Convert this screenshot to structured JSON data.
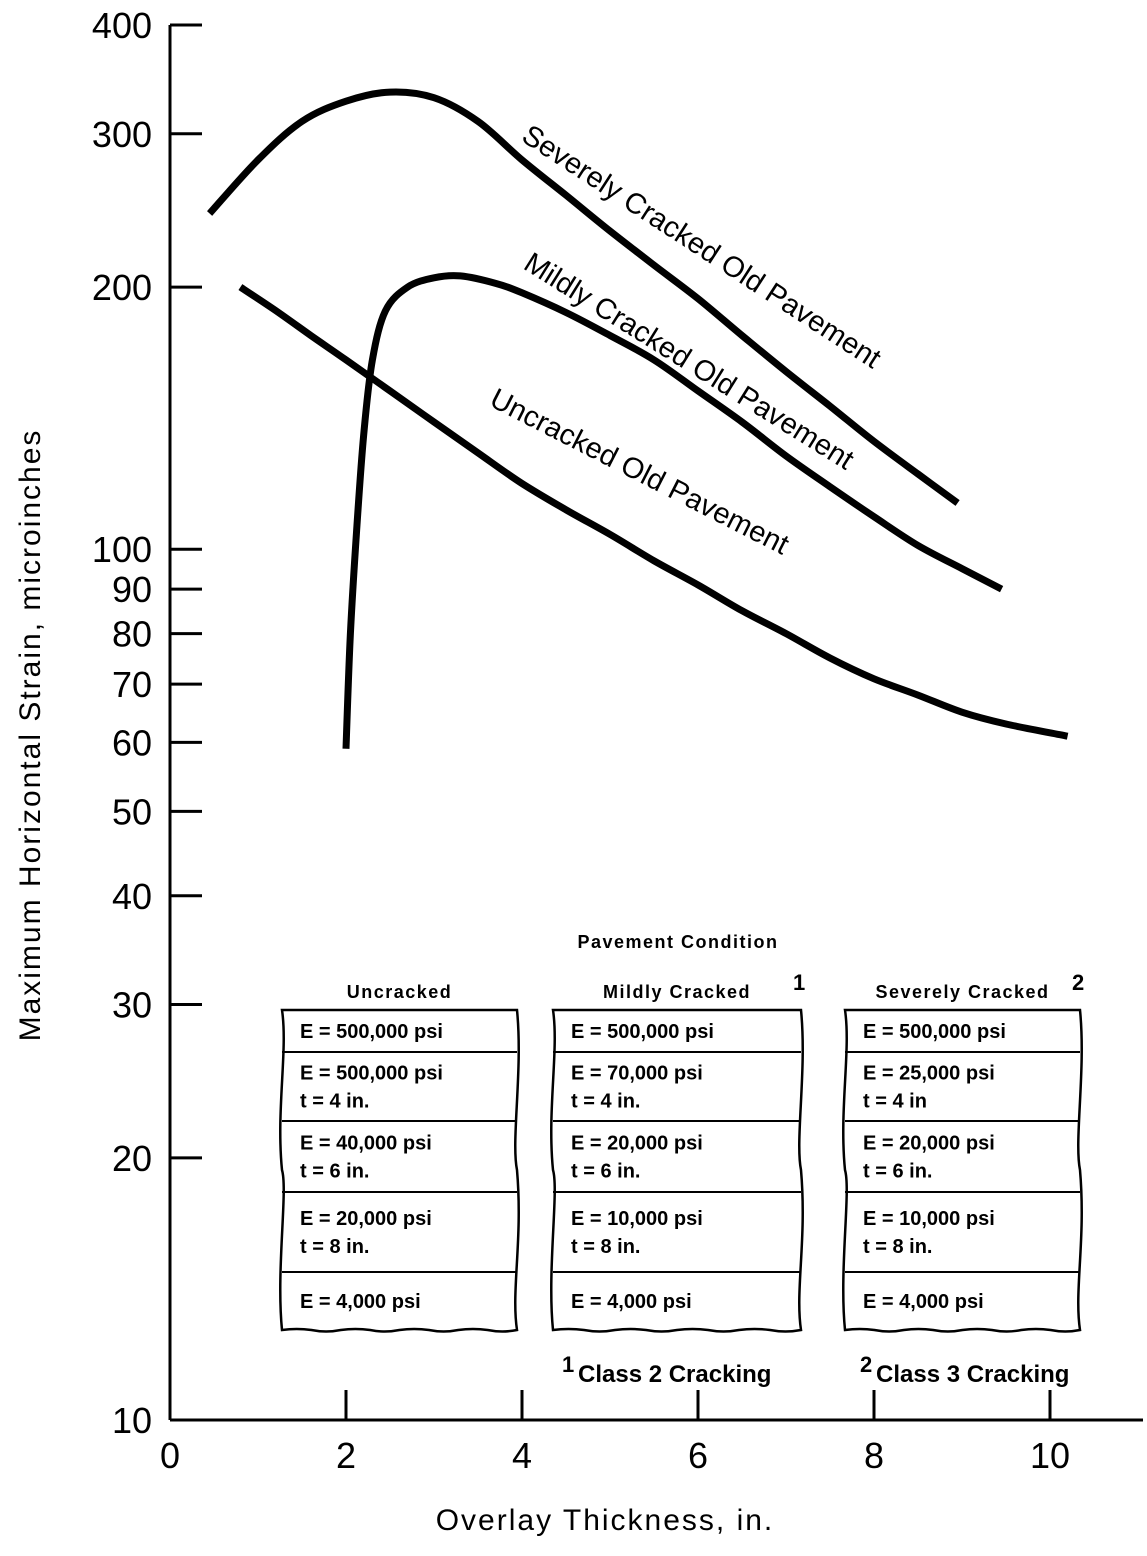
{
  "chart_data": {
    "type": "line",
    "xlabel": "Overlay Thickness, in.",
    "ylabel": "Maximum Horizontal Strain, microinches",
    "xlim": [
      0,
      11
    ],
    "ylim": [
      10,
      400
    ],
    "yscale": "log",
    "grid": false,
    "x_ticks": [
      0,
      2,
      4,
      6,
      8,
      10
    ],
    "x_tick_labels": [
      "0",
      "2",
      "4",
      "6",
      "8",
      "10"
    ],
    "y_ticks": [
      10,
      20,
      30,
      40,
      50,
      60,
      70,
      80,
      90,
      100,
      200,
      300,
      400
    ],
    "y_tick_labels": [
      "10",
      "20",
      "30",
      "40",
      "50",
      "60",
      "70",
      "80",
      "90",
      "100",
      "200",
      "300",
      "400"
    ],
    "series": [
      {
        "name": "Severely Cracked Old Pavement",
        "points": [
          [
            0.45,
            243
          ],
          [
            1.0,
            280
          ],
          [
            1.5,
            310
          ],
          [
            2.0,
            327
          ],
          [
            2.5,
            335
          ],
          [
            3.0,
            330
          ],
          [
            3.5,
            310
          ],
          [
            4.0,
            280
          ],
          [
            4.5,
            255
          ],
          [
            5.0,
            232
          ],
          [
            5.5,
            212
          ],
          [
            6.0,
            194
          ],
          [
            6.5,
            176
          ],
          [
            7.0,
            160
          ],
          [
            7.5,
            146
          ],
          [
            8.0,
            133
          ],
          [
            8.5,
            122
          ],
          [
            8.95,
            113
          ]
        ]
      },
      {
        "name": "Mildly Cracked Old Pavement",
        "points": [
          [
            2.0,
            59
          ],
          [
            2.05,
            80
          ],
          [
            2.12,
            105
          ],
          [
            2.2,
            135
          ],
          [
            2.3,
            165
          ],
          [
            2.45,
            188
          ],
          [
            2.7,
            200
          ],
          [
            3.0,
            205
          ],
          [
            3.3,
            206
          ],
          [
            3.7,
            202
          ],
          [
            4.0,
            197
          ],
          [
            4.5,
            187
          ],
          [
            5.0,
            176
          ],
          [
            5.5,
            165
          ],
          [
            6.0,
            152
          ],
          [
            6.5,
            140
          ],
          [
            7.0,
            128
          ],
          [
            7.5,
            118
          ],
          [
            8.0,
            109
          ],
          [
            8.5,
            101
          ],
          [
            9.0,
            95
          ],
          [
            9.45,
            90
          ]
        ]
      },
      {
        "name": "Uncracked Old Pavement",
        "points": [
          [
            0.8,
            200
          ],
          [
            1.2,
            188
          ],
          [
            1.6,
            176
          ],
          [
            2.0,
            165
          ],
          [
            2.5,
            152
          ],
          [
            3.0,
            140
          ],
          [
            3.5,
            129
          ],
          [
            4.0,
            119
          ],
          [
            4.5,
            111
          ],
          [
            5.0,
            104
          ],
          [
            5.5,
            97
          ],
          [
            6.0,
            91
          ],
          [
            6.5,
            85
          ],
          [
            7.0,
            80
          ],
          [
            7.5,
            75
          ],
          [
            8.0,
            71
          ],
          [
            8.5,
            68
          ],
          [
            9.0,
            65
          ],
          [
            9.5,
            63
          ],
          [
            10.2,
            61
          ]
        ]
      }
    ],
    "annotations": {
      "severe_label": "Severely Cracked Old Pavement",
      "mild_label": "Mildly Cracked Old Pavement",
      "uncracked_label": "Uncracked Old Pavement"
    },
    "inset": {
      "title": "Pavement Condition",
      "columns": [
        {
          "heading": "Uncracked",
          "sup": "",
          "layers": [
            [
              "E = 500,000 psi"
            ],
            [
              "E = 500,000 psi",
              "t = 4 in."
            ],
            [
              "E = 40,000 psi",
              "t = 6 in."
            ],
            [
              "E = 20,000 psi",
              "t = 8 in."
            ],
            [
              "E = 4,000 psi"
            ]
          ]
        },
        {
          "heading": "Mildly Cracked",
          "sup": "1",
          "layers": [
            [
              "E = 500,000 psi"
            ],
            [
              "E = 70,000 psi",
              "t = 4 in."
            ],
            [
              "E = 20,000 psi",
              "t = 6 in."
            ],
            [
              "E = 10,000 psi",
              "t = 8 in."
            ],
            [
              "E = 4,000 psi"
            ]
          ]
        },
        {
          "heading": "Severely Cracked",
          "sup": "2",
          "layers": [
            [
              "E = 500,000 psi"
            ],
            [
              "E = 25,000 psi",
              "t = 4 in"
            ],
            [
              "E = 20,000 psi",
              "t = 6 in."
            ],
            [
              "E = 10,000 psi",
              "t = 8 in."
            ],
            [
              "E = 4,000 psi"
            ]
          ]
        }
      ],
      "notes": [
        {
          "sup": "1",
          "text": "Class 2 Cracking"
        },
        {
          "sup": "2",
          "text": "Class 3 Cracking"
        }
      ]
    }
  }
}
